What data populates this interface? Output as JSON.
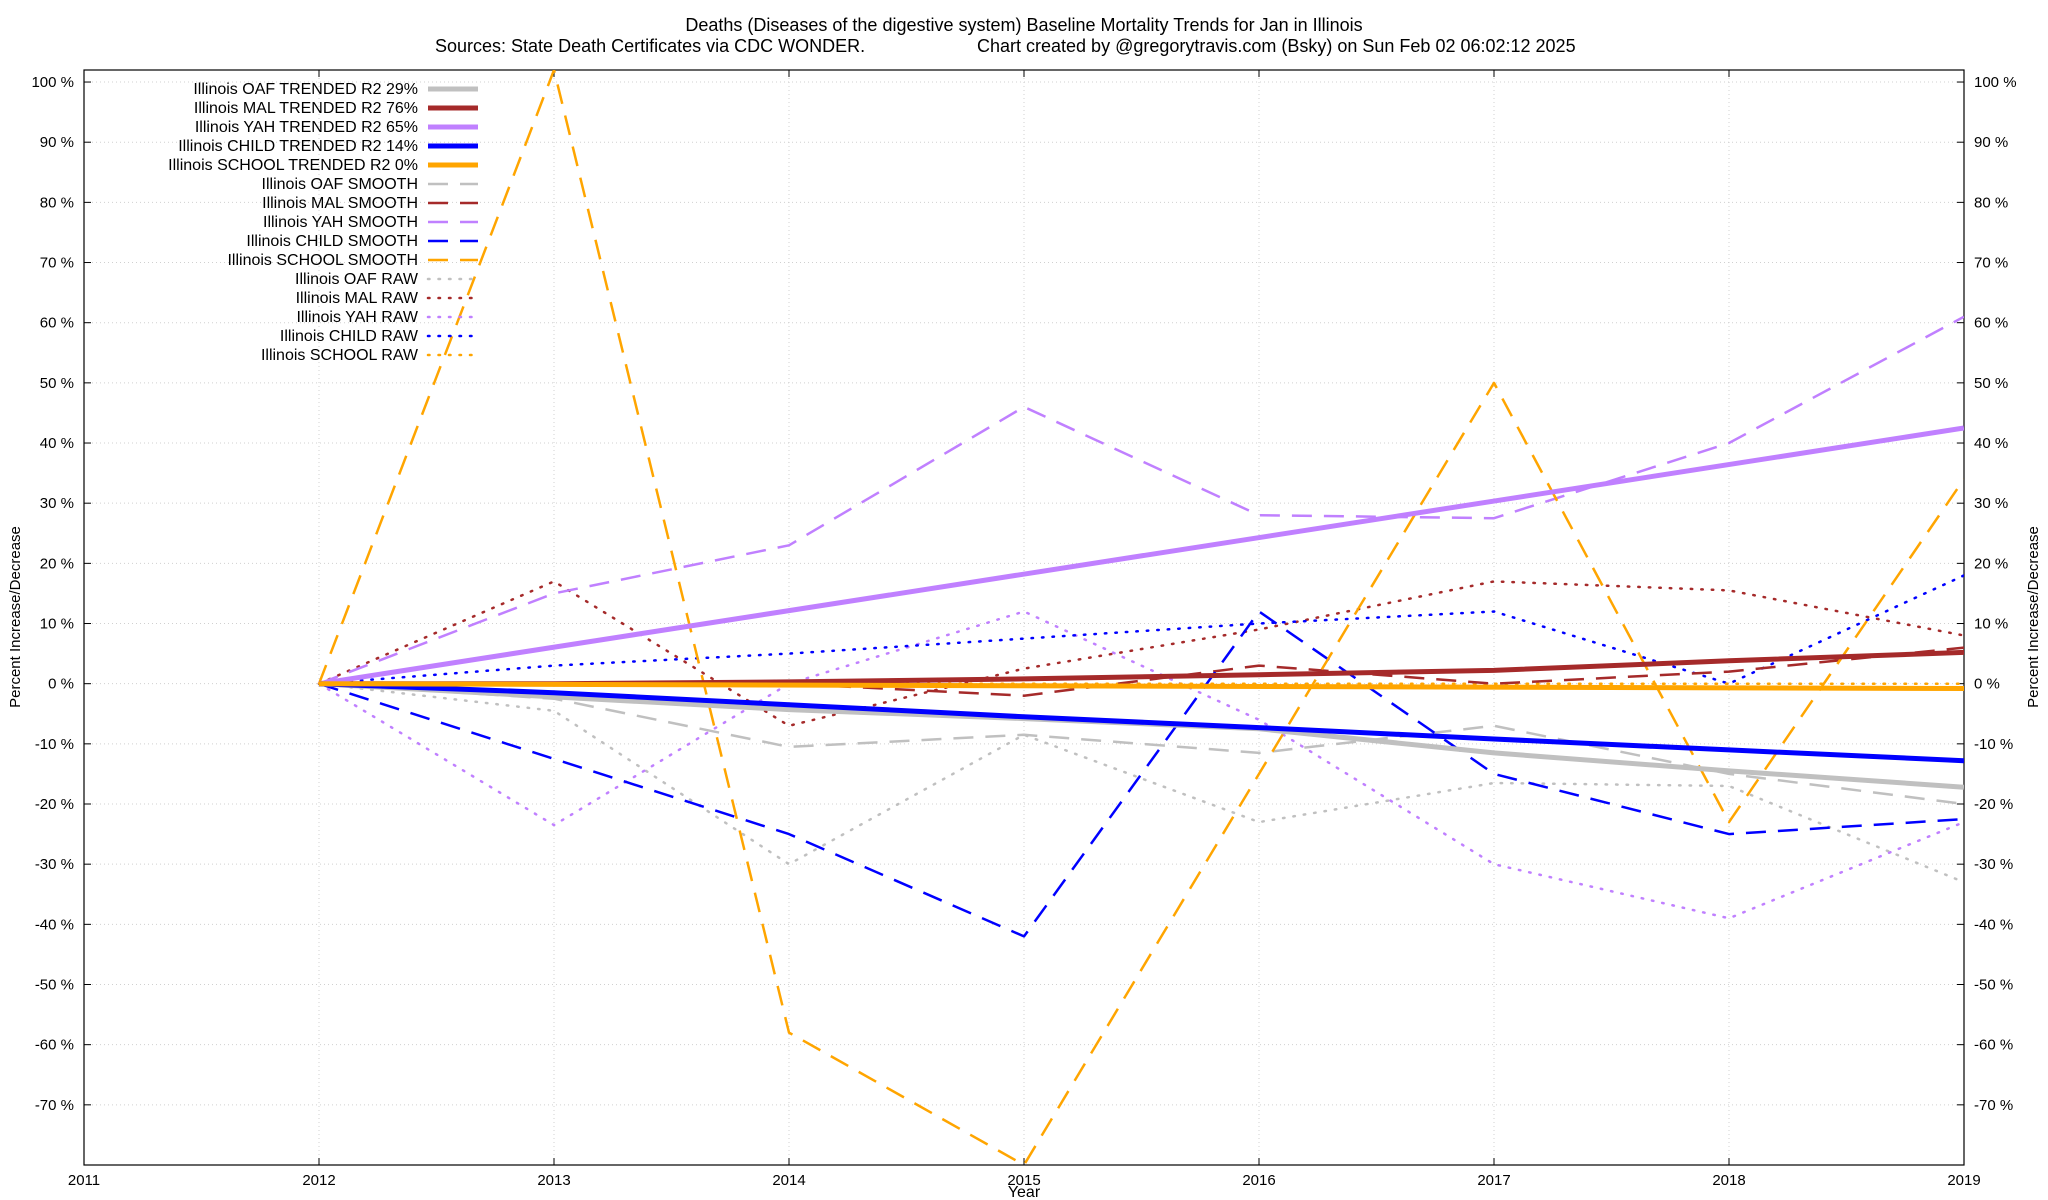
{
  "chart_data": {
    "type": "line",
    "title": "Deaths (Diseases of the digestive system)  Baseline Mortality Trends for Jan in Illinois",
    "subtitle_left": "Sources: State Death Certificates via CDC WONDER.",
    "subtitle_right": "Chart created by @gregorytravis.com (Bsky) on Sun Feb 02 06:02:12 2025",
    "xlabel": "Year",
    "ylabel": "Percent Increase/Decrease",
    "xlim": [
      2011,
      2019
    ],
    "ylim": [
      -80,
      102
    ],
    "x_ticks": [
      "2011",
      "2012",
      "2013",
      "2014",
      "2015",
      "2016",
      "2017",
      "2018",
      "2019"
    ],
    "y_ticks": [
      {
        "value": 100,
        "label": "100 %"
      },
      {
        "value": 90,
        "label": "90 %"
      },
      {
        "value": 80,
        "label": "80 %"
      },
      {
        "value": 70,
        "label": "70 %"
      },
      {
        "value": 60,
        "label": "60 %"
      },
      {
        "value": 50,
        "label": "50 %"
      },
      {
        "value": 40,
        "label": "40 %"
      },
      {
        "value": 30,
        "label": "30 %"
      },
      {
        "value": 20,
        "label": "20 %"
      },
      {
        "value": 10,
        "label": "10 %"
      },
      {
        "value": 0,
        "label": "0 %"
      },
      {
        "value": -10,
        "label": "-10 %"
      },
      {
        "value": -20,
        "label": "-20 %"
      },
      {
        "value": -30,
        "label": "-30 %"
      },
      {
        "value": -40,
        "label": "-40 %"
      },
      {
        "value": -50,
        "label": "-50 %"
      },
      {
        "value": -60,
        "label": "-60 %"
      },
      {
        "value": -70,
        "label": "-70 %"
      }
    ],
    "grid": true,
    "legend_position": "top-left",
    "series": [
      {
        "name": "Illinois OAF TRENDED R2  29%",
        "style": "solid",
        "color": "#c0c0c0",
        "x": [
          2012,
          2013,
          2014,
          2015,
          2016,
          2017,
          2018,
          2019
        ],
        "y": [
          0,
          -2.2,
          -4.3,
          -5.8,
          -7.5,
          -11.5,
          -14.5,
          -17.2
        ]
      },
      {
        "name": "Illinois MAL TRENDED R2  76%",
        "style": "solid",
        "color": "#a52a2a",
        "x": [
          2012,
          2013,
          2014,
          2015,
          2016,
          2017,
          2018,
          2019
        ],
        "y": [
          0,
          0,
          0.3,
          0.8,
          1.5,
          2.2,
          3.8,
          5.2
        ]
      },
      {
        "name": "Illinois YAH TRENDED R2  65%",
        "style": "solid",
        "color": "#c080ff",
        "x": [
          2012,
          2019
        ],
        "y": [
          0,
          42.5
        ]
      },
      {
        "name": "Illinois CHILD TRENDED R2  14%",
        "style": "solid",
        "color": "#0000ff",
        "x": [
          2012,
          2013,
          2014,
          2015,
          2016,
          2017,
          2018,
          2019
        ],
        "y": [
          0,
          -1.5,
          -3.5,
          -5.5,
          -7.3,
          -9.2,
          -11,
          -12.8
        ]
      },
      {
        "name": "Illinois SCHOOL TRENDED R2  0%",
        "style": "solid",
        "color": "#ffa500",
        "x": [
          2012,
          2019
        ],
        "y": [
          0,
          -0.8
        ]
      },
      {
        "name": "Illinois OAF SMOOTH",
        "style": "dashed",
        "color": "#c0c0c0",
        "x": [
          2012,
          2013,
          2014,
          2015,
          2016,
          2017,
          2018,
          2019
        ],
        "y": [
          0,
          -2.5,
          -10.5,
          -8.5,
          -11.5,
          -7,
          -15,
          -20
        ]
      },
      {
        "name": "Illinois MAL SMOOTH",
        "style": "dashed",
        "color": "#a52a2a",
        "x": [
          2012,
          2013,
          2014,
          2015,
          2016,
          2017,
          2018,
          2019
        ],
        "y": [
          0,
          0,
          0,
          -2,
          3,
          0,
          2,
          6
        ]
      },
      {
        "name": "Illinois YAH SMOOTH",
        "style": "dashed",
        "color": "#c080ff",
        "x": [
          2012,
          2013,
          2014,
          2015,
          2016,
          2017,
          2018,
          2019
        ],
        "y": [
          0,
          15,
          23,
          46,
          28,
          27.5,
          40,
          61
        ]
      },
      {
        "name": "Illinois CHILD SMOOTH",
        "style": "dashed",
        "color": "#0000ff",
        "x": [
          2012,
          2013,
          2014,
          2015,
          2016,
          2017,
          2018,
          2019
        ],
        "y": [
          0,
          -12.5,
          -25,
          -42,
          12,
          -15,
          -25,
          -22.5
        ]
      },
      {
        "name": "Illinois SCHOOL SMOOTH",
        "style": "dashed",
        "color": "#ffa500",
        "x": [
          2012,
          2013,
          2014,
          2015,
          2016,
          2017,
          2018,
          2019
        ],
        "y": [
          0,
          102,
          -58,
          -80,
          -15,
          50,
          -23,
          34
        ]
      },
      {
        "name": "Illinois OAF RAW",
        "style": "dotted",
        "color": "#c0c0c0",
        "x": [
          2012,
          2013,
          2014,
          2015,
          2016,
          2017,
          2018,
          2019
        ],
        "y": [
          0,
          -4.5,
          -30,
          -8.5,
          -23,
          -16.5,
          -17,
          -33
        ]
      },
      {
        "name": "Illinois MAL RAW",
        "style": "dotted",
        "color": "#a52a2a",
        "x": [
          2012,
          2013,
          2014,
          2015,
          2016,
          2017,
          2018,
          2019
        ],
        "y": [
          0,
          17,
          -7,
          2.5,
          9,
          17,
          15.5,
          8
        ]
      },
      {
        "name": "Illinois YAH RAW",
        "style": "dotted",
        "color": "#c080ff",
        "x": [
          2012,
          2013,
          2014,
          2015,
          2016,
          2017,
          2018,
          2019
        ],
        "y": [
          0,
          -23.5,
          0,
          12,
          -6,
          -30,
          -39,
          -23
        ]
      },
      {
        "name": "Illinois CHILD RAW",
        "style": "dotted",
        "color": "#0000ff",
        "x": [
          2012,
          2013,
          2014,
          2015,
          2016,
          2017,
          2018,
          2019
        ],
        "y": [
          0,
          3,
          5,
          7.5,
          10,
          12,
          0,
          18
        ]
      },
      {
        "name": "Illinois SCHOOL RAW",
        "style": "dotted",
        "color": "#ffa500",
        "x": [
          2012,
          2019
        ],
        "y": [
          0,
          0
        ]
      }
    ]
  }
}
